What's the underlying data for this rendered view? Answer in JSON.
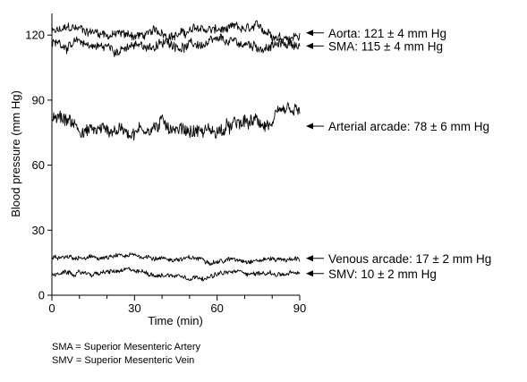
{
  "chart_data": {
    "type": "line",
    "xlabel": "Time (min)",
    "ylabel": "Blood pressure (mm Hg)",
    "xlim": [
      0,
      90
    ],
    "ylim": [
      0,
      130
    ],
    "xticks": [
      0,
      30,
      60,
      90
    ],
    "xticks_minor": [
      10,
      20,
      40,
      50,
      70,
      80
    ],
    "yticks": [
      0,
      30,
      60,
      90,
      120
    ],
    "grid": false,
    "legend": "none",
    "series": [
      {
        "name": "Aorta",
        "mean": 121,
        "sd": 4,
        "label": "Aorta: 121 ± 4 mm Hg"
      },
      {
        "name": "SMA",
        "mean": 115,
        "sd": 4,
        "label": "SMA: 115 ± 4 mm Hg"
      },
      {
        "name": "Arterial arcade",
        "mean": 78,
        "sd": 6,
        "label": "Arterial arcade: 78 ± 6 mm Hg"
      },
      {
        "name": "Venous arcade",
        "mean": 17,
        "sd": 2,
        "label": "Venous arcade: 17 ± 2 mm Hg"
      },
      {
        "name": "SMV",
        "mean": 10,
        "sd": 2,
        "label": "SMV: 10 ± 2 mm Hg"
      }
    ]
  },
  "footnotes": [
    "SMA = Superior Mesenteric Artery",
    "SMV = Superior Mesenteric Vein"
  ]
}
